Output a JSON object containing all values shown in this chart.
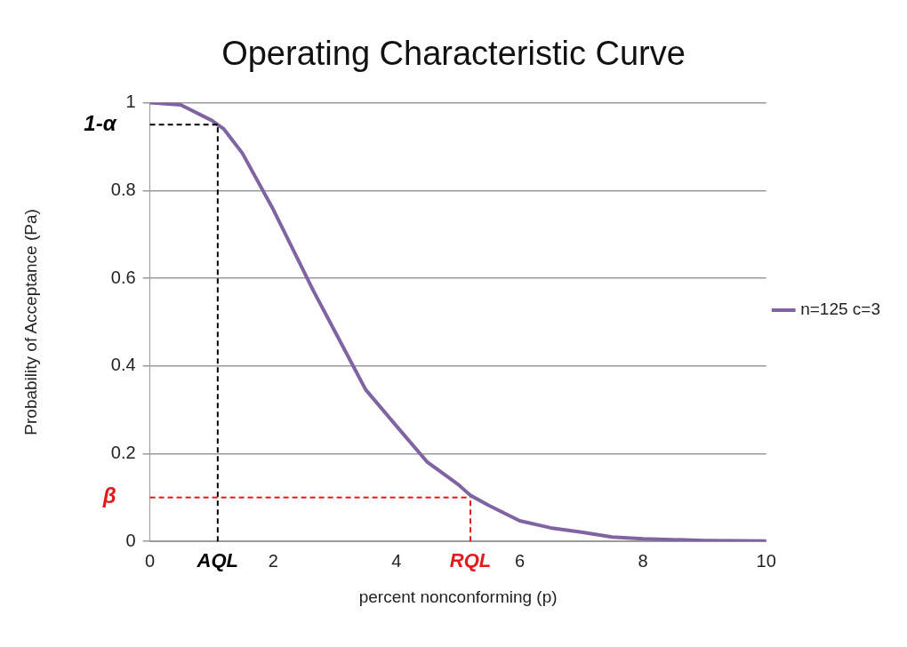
{
  "chart_data": {
    "type": "line",
    "title": "Operating Characteristic Curve",
    "xlabel": "percent nonconforming (p)",
    "ylabel": "Probability of Acceptance (Pa)",
    "x": [
      0,
      0.5,
      1,
      1.2,
      1.5,
      2,
      2.65,
      3,
      3.5,
      4,
      4.5,
      5,
      5.2,
      5.5,
      6,
      6.5,
      7,
      7.5,
      8,
      9,
      10
    ],
    "series": [
      {
        "name": "n=125 c=3",
        "color": "#8064a2",
        "values": [
          1,
          0.995,
          0.96,
          0.94,
          0.885,
          0.757,
          0.572,
          0.479,
          0.346,
          0.263,
          0.181,
          0.13,
          0.105,
          0.082,
          0.047,
          0.031,
          0.021,
          0.01,
          0.006,
          0.002,
          0.001
        ]
      }
    ],
    "xlim": [
      0,
      10
    ],
    "xticks": [
      0,
      2,
      4,
      6,
      8,
      10
    ],
    "ylim": [
      0,
      1
    ],
    "yticks": [
      0,
      0.2,
      0.4,
      0.6,
      0.8,
      1
    ],
    "ref_lines": [
      {
        "axis": "y",
        "value": 0.95,
        "label": "1-α",
        "color": "#000000",
        "line_style": "dashed"
      },
      {
        "axis": "x",
        "value": 1.1,
        "label": "AQL",
        "color": "#000000",
        "line_style": "dashed"
      },
      {
        "axis": "y",
        "value": 0.1,
        "label": "β",
        "color": "#e31a1c",
        "line_style": "dashed"
      },
      {
        "axis": "x",
        "value": 5.2,
        "label": "RQL",
        "color": "#e31a1c",
        "line_style": "dashed"
      }
    ],
    "grid": "y",
    "legend": "right",
    "marker": "none",
    "line_style": "solid"
  }
}
